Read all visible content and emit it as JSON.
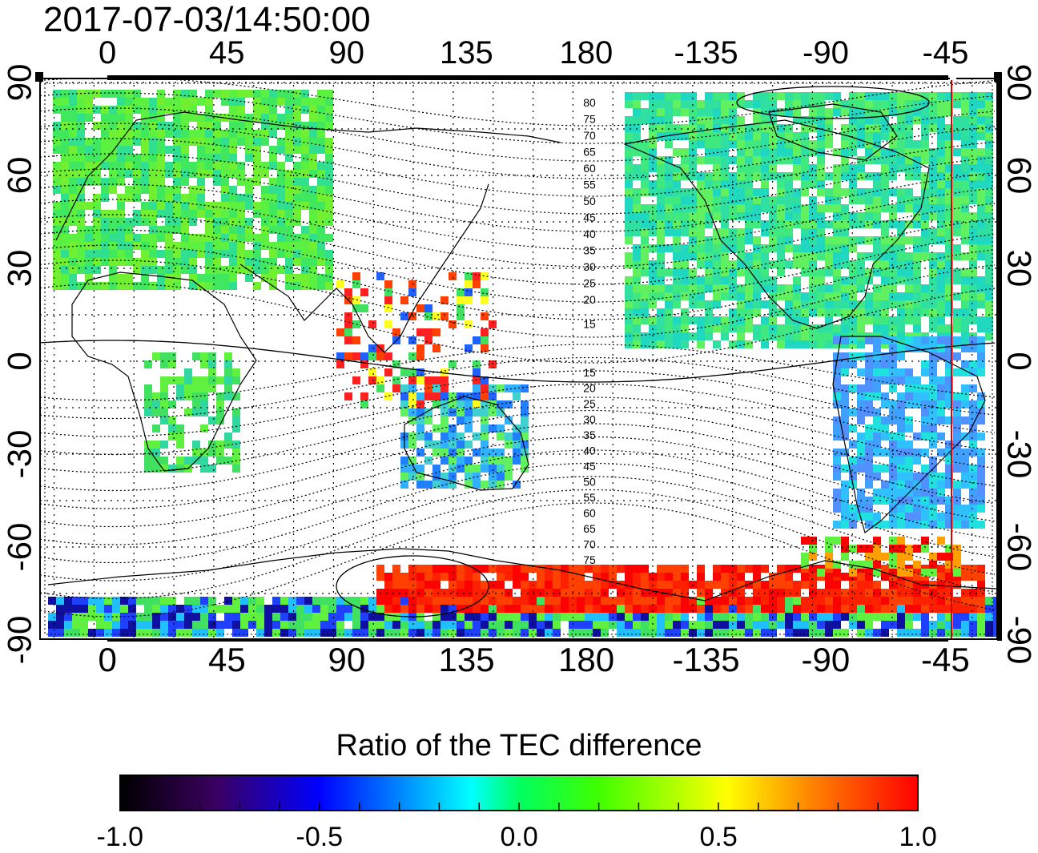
{
  "timestamp": "2017-07-03/14:50:00",
  "map": {
    "top_lon_ticks": [
      "0",
      "45",
      "90",
      "135",
      "180",
      "-135",
      "-90",
      "-45"
    ],
    "bottom_lon_ticks": [
      "0",
      "45",
      "90",
      "135",
      "180",
      "-135",
      "-90",
      "-45"
    ],
    "left_lat_ticks": [
      "90",
      "60",
      "30",
      "0",
      "-30",
      "-60",
      "-90"
    ],
    "right_lat_ticks": [
      "90",
      "60",
      "30",
      "0",
      "-30",
      "-60",
      "-90"
    ],
    "contour_labels_north": [
      "80",
      "75",
      "70",
      "65",
      "60",
      "55",
      "50",
      "45",
      "40",
      "35",
      "30",
      "25",
      "20",
      "15"
    ],
    "contour_labels_south": [
      "15",
      "20",
      "25",
      "30",
      "35",
      "40",
      "45",
      "50",
      "55",
      "60",
      "65",
      "70",
      "75"
    ],
    "marker_line_longitude": -45,
    "marker_line_color": "#e00000"
  },
  "colorbar": {
    "title": "Ratio of the TEC difference",
    "tick_labels": [
      "-1.0",
      "-0.5",
      "0.0",
      "0.5",
      "1.0"
    ],
    "range": [
      -1.0,
      1.0
    ],
    "colors": [
      "#000000",
      "#3a0060",
      "#0000ff",
      "#00ffff",
      "#00ff00",
      "#ffff00",
      "#ff8000",
      "#ff0000"
    ]
  }
}
